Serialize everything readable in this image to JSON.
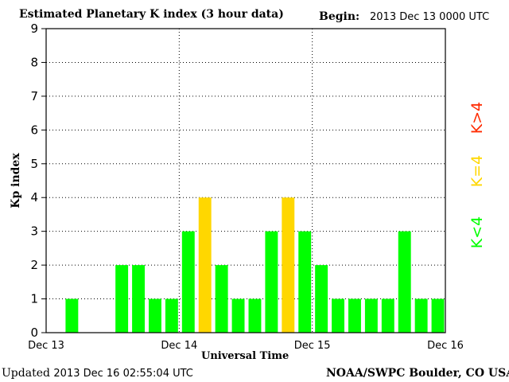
{
  "header": {
    "title": "Estimated Planetary K index (3 hour data)",
    "begin_label": "Begin:",
    "begin_value": "2013 Dec 13 0000 UTC"
  },
  "footer": {
    "updated_label": "Updated",
    "updated_value": "2013 Dec 16 02:55:04 UTC",
    "credit": "NOAA/SWPC Boulder, CO USA"
  },
  "legend": {
    "high": "K>4",
    "equal": "K=4",
    "low": "K<4"
  },
  "colors": {
    "low": "#00ff00",
    "equal": "#ffd700",
    "high": "#ff2a00",
    "grid": "#000000"
  },
  "chart_data": {
    "type": "bar",
    "title": "Estimated Planetary K index (3 hour data)",
    "xlabel": "Universal Time",
    "ylabel": "Kp index",
    "ylim": [
      0,
      9
    ],
    "yticks": [
      "0",
      "1",
      "2",
      "3",
      "4",
      "5",
      "6",
      "7",
      "8",
      "9"
    ],
    "xticks": [
      "Dec 13",
      "Dec 14",
      "Dec 15",
      "Dec 16"
    ],
    "grid": true,
    "bin_hours": 3,
    "values": [
      1,
      null,
      null,
      2,
      2,
      1,
      1,
      3,
      4,
      2,
      1,
      1,
      3,
      4,
      3,
      2,
      1,
      1,
      1,
      1,
      3,
      1,
      1
    ]
  }
}
